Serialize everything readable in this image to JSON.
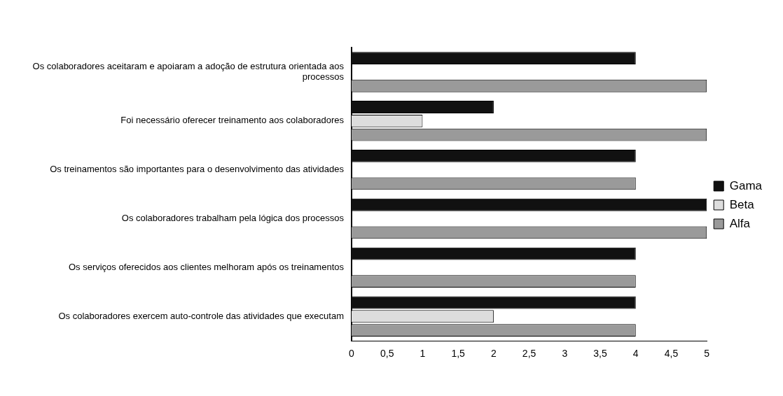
{
  "chart_data": {
    "type": "bar",
    "orientation": "horizontal",
    "categories": [
      "Os colaboradores aceitaram e apoiaram a adoção de estrutura orientada aos processos",
      "Foi necessário oferecer treinamento aos colaboradores",
      "Os treinamentos são importantes para o desenvolvimento das atividades",
      "Os colaboradores trabalham pela lógica dos processos",
      "Os serviços oferecidos aos clientes melhoram após os treinamentos",
      "Os colaboradores exercem auto-controle das atividades que executam"
    ],
    "series": [
      {
        "name": "Gama",
        "color": "#111111",
        "values": [
          4,
          2,
          4,
          5,
          4,
          4
        ]
      },
      {
        "name": "Beta",
        "color": "#dddddd",
        "values": [
          0,
          1,
          0,
          0,
          0,
          2
        ]
      },
      {
        "name": "Alfa",
        "color": "#9a9a9a",
        "values": [
          5,
          5,
          4,
          5,
          4,
          4
        ]
      }
    ],
    "xlim": [
      0,
      5
    ],
    "xticks": [
      0,
      {
        "value": 0.5,
        "label": "0,5"
      },
      1,
      {
        "value": 1.5,
        "label": "1,5"
      },
      2,
      {
        "value": 2.5,
        "label": "2,5"
      },
      3,
      {
        "value": 3.5,
        "label": "3,5"
      },
      4,
      {
        "value": 4.5,
        "label": "4,5"
      },
      5
    ],
    "grid": false,
    "legend": "right"
  }
}
